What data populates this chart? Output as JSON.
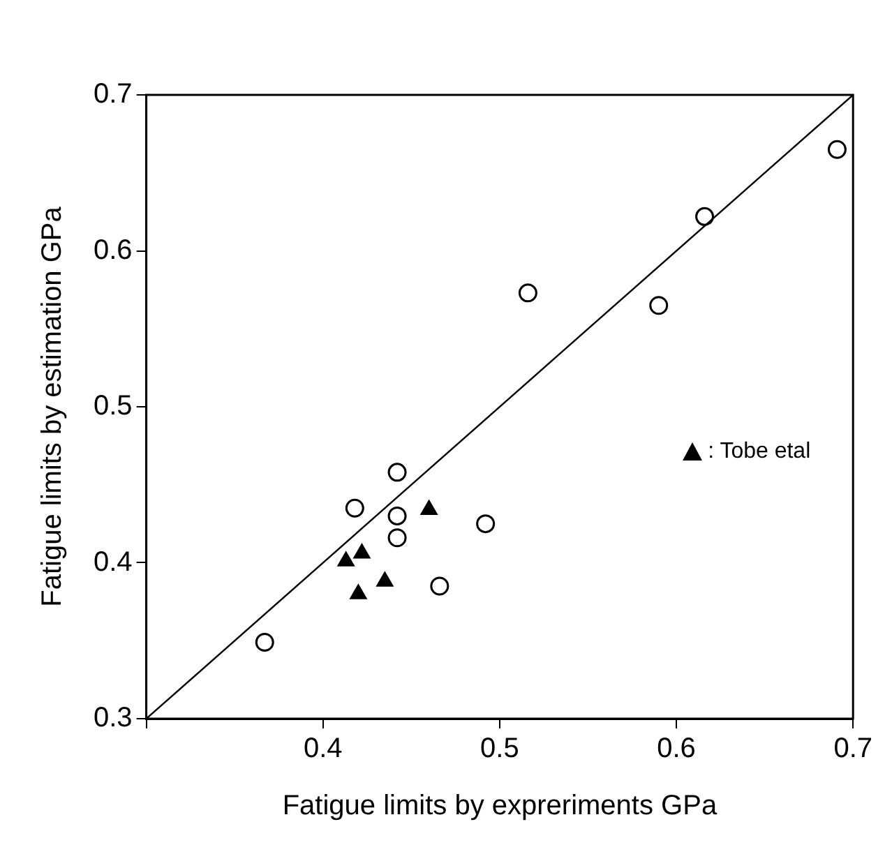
{
  "chart_data": {
    "type": "scatter",
    "xlabel": "Fatigue limits by expreriments GPa",
    "ylabel": "Fatigue limits by estimation GPa",
    "xlim": [
      0.3,
      0.7
    ],
    "ylim": [
      0.3,
      0.7
    ],
    "xticks": [
      {
        "value": 0.3,
        "label": null
      },
      0.4,
      0.5,
      0.6,
      0.7
    ],
    "yticks": [
      0.3,
      0.4,
      0.5,
      0.6,
      0.7
    ],
    "grid": false,
    "legend": "right",
    "series": [
      {
        "marker": "circle",
        "color": "#000000",
        "x": [
          0.691,
          0.616,
          0.516,
          0.59,
          0.442,
          0.418,
          0.442,
          0.442,
          0.492,
          0.466,
          0.367
        ],
        "values": [
          0.665,
          0.622,
          0.573,
          0.565,
          0.458,
          0.435,
          0.43,
          0.416,
          0.425,
          0.385,
          0.349
        ]
      },
      {
        "name": ": Tobe etal",
        "marker": "triangle",
        "color": "#000000",
        "x": [
          0.46,
          0.422,
          0.413,
          0.435,
          0.42
        ],
        "values": [
          0.434,
          0.406,
          0.401,
          0.388,
          0.38
        ]
      },
      {
        "type": "line",
        "marker": "none",
        "color": "#000000",
        "x": [
          0.3,
          0.7
        ],
        "values": [
          0.3,
          0.7
        ]
      }
    ]
  }
}
